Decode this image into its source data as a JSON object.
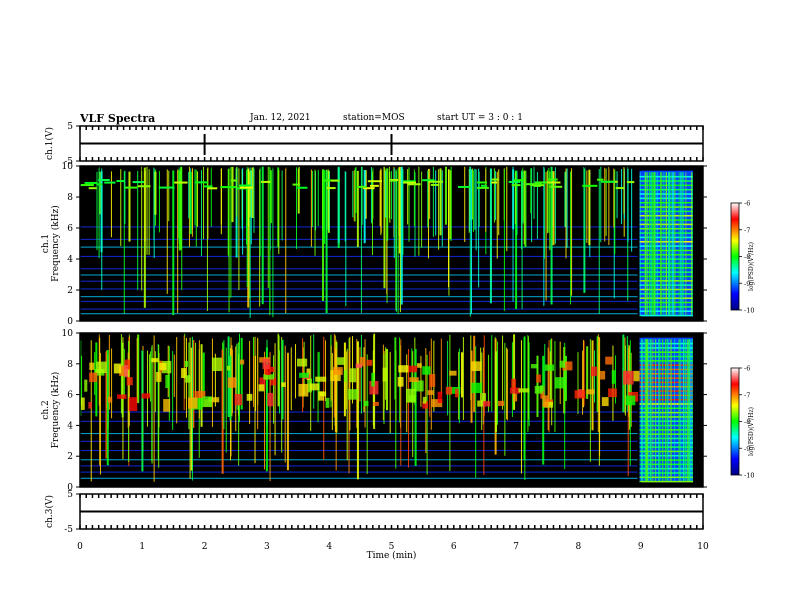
{
  "header": {
    "title": "VLF Spectra",
    "date": "Jan. 12, 2021",
    "station": "station=MOS",
    "start": "start UT =  3 : 0 : 1"
  },
  "chart_data": [
    {
      "type": "line",
      "name": "ch1-waveform",
      "ylabel": "ch.1(V)",
      "ylim": [
        -5,
        5
      ],
      "yticks": [
        "5",
        "-5"
      ],
      "x": [
        0,
        10
      ],
      "y": [
        0,
        0
      ]
    },
    {
      "type": "heatmap",
      "name": "ch1-spectrogram",
      "ylabel": "ch.1\nFrequency (kHz)",
      "ylabel_lines": [
        "ch.1",
        "Frequency (kHz)"
      ],
      "ylim": [
        0,
        10
      ],
      "yticks": [
        "0",
        "2",
        "4",
        "6",
        "8",
        "10"
      ],
      "xlim": [
        0,
        10
      ],
      "dense_until_min": 8.95,
      "colorbar": {
        "label": "log(PSD)(V²/Hz)",
        "range": [
          -10,
          -6
        ],
        "ticks": [
          "-6",
          "-7",
          "-8",
          "-9",
          "-10"
        ]
      }
    },
    {
      "type": "heatmap",
      "name": "ch2-spectrogram",
      "ylabel_lines": [
        "ch.2",
        "Frequency (kHz)"
      ],
      "ylim": [
        0,
        10
      ],
      "yticks": [
        "0",
        "2",
        "4",
        "6",
        "8",
        "10"
      ],
      "xlim": [
        0,
        10
      ],
      "dense_until_min": 8.95,
      "colorbar": {
        "label": "log(PSD)(V²/Hz)",
        "range": [
          -10,
          -6
        ],
        "ticks": [
          "-6",
          "-7",
          "-8",
          "-9",
          "-10"
        ]
      }
    },
    {
      "type": "line",
      "name": "ch3-waveform",
      "ylabel": "ch.3(V)",
      "ylim": [
        -5,
        5
      ],
      "yticks": [
        "5",
        "-5"
      ],
      "x": [
        0,
        10
      ],
      "y": [
        0,
        0
      ]
    }
  ],
  "xaxis": {
    "label": "Time (min)",
    "range": [
      0,
      10
    ],
    "ticks": [
      "0",
      "1",
      "2",
      "3",
      "4",
      "5",
      "6",
      "7",
      "8",
      "9",
      "10"
    ]
  },
  "colors": {
    "background": "#000000",
    "frame": "#000000"
  }
}
